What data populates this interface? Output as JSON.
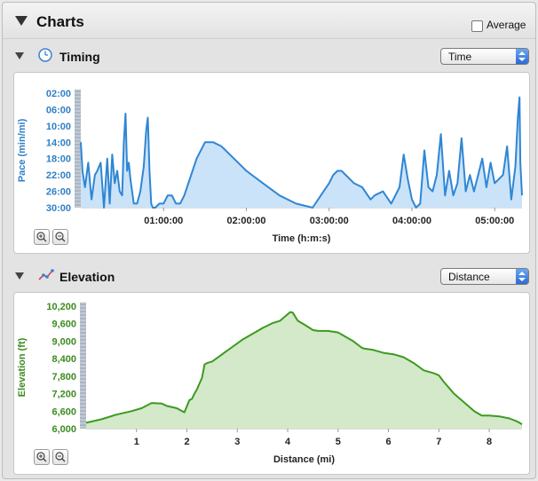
{
  "header": {
    "title": "Charts",
    "average_label": "Average"
  },
  "timing": {
    "title": "Timing",
    "select_value": "Time",
    "chart_data": {
      "type": "area",
      "ylabel": "Pace (min/mi)",
      "xlabel": "Time (h:m:s)",
      "y_ticks": [
        "02:00",
        "06:00",
        "10:00",
        "14:00",
        "18:00",
        "22:00",
        "26:00",
        "30:00"
      ],
      "x_ticks": [
        "01:00:00",
        "02:00:00",
        "03:00:00",
        "04:00:00",
        "05:00:00"
      ],
      "ylim": [
        2,
        30
      ],
      "y_reversed": true,
      "xlim": [
        0,
        5.33
      ],
      "x_unit": "hours",
      "color": "#2f86d4",
      "fill": "#cbe3f8",
      "x": [
        0,
        0.02,
        0.05,
        0.09,
        0.13,
        0.17,
        0.2,
        0.24,
        0.28,
        0.32,
        0.35,
        0.38,
        0.41,
        0.44,
        0.47,
        0.5,
        0.52,
        0.54,
        0.56,
        0.58,
        0.6,
        0.64,
        0.68,
        0.72,
        0.76,
        0.79,
        0.81,
        0.83,
        0.85,
        0.87,
        0.9,
        0.95,
        1.0,
        1.05,
        1.1,
        1.15,
        1.2,
        1.25,
        1.3,
        1.4,
        1.5,
        1.6,
        1.7,
        1.8,
        1.9,
        2.0,
        2.2,
        2.4,
        2.6,
        2.8,
        2.9,
        3.0,
        3.05,
        3.1,
        3.15,
        3.3,
        3.4,
        3.5,
        3.55,
        3.65,
        3.75,
        3.85,
        3.9,
        3.95,
        4.0,
        4.05,
        4.1,
        4.15,
        4.2,
        4.25,
        4.3,
        4.35,
        4.4,
        4.45,
        4.5,
        4.55,
        4.6,
        4.65,
        4.7,
        4.75,
        4.8,
        4.85,
        4.9,
        4.95,
        5.0,
        5.05,
        5.1,
        5.15,
        5.2,
        5.25,
        5.28,
        5.3,
        5.31,
        5.33
      ],
      "values": [
        14,
        21,
        25,
        19,
        28,
        22,
        21,
        19,
        30,
        18,
        29,
        17,
        24,
        21,
        26,
        27,
        14,
        7,
        21,
        19,
        23,
        29,
        29,
        26,
        20,
        11,
        8,
        21,
        29,
        30,
        30,
        29,
        29,
        27,
        27,
        29,
        29,
        27,
        24,
        18,
        14,
        14,
        15,
        17,
        19,
        21,
        24,
        27,
        29,
        30,
        27,
        24,
        22,
        21,
        21,
        24,
        25,
        28,
        27,
        26,
        29,
        25,
        17,
        23,
        28,
        30,
        29,
        16,
        25,
        26,
        22,
        12,
        27,
        21,
        27,
        24,
        13,
        26,
        22,
        26,
        22,
        18,
        25,
        19,
        24,
        23,
        22,
        15,
        28,
        20,
        8,
        3,
        19,
        27
      ]
    }
  },
  "elevation": {
    "title": "Elevation",
    "select_value": "Distance",
    "chart_data": {
      "type": "area",
      "ylabel": "Elevation (ft)",
      "xlabel": "Distance (mi)",
      "y_ticks": [
        "10,200",
        "9,600",
        "9,000",
        "8,400",
        "7,800",
        "7,200",
        "6,600",
        "6,000"
      ],
      "x_ticks": [
        "1",
        "2",
        "3",
        "4",
        "5",
        "6",
        "7",
        "8"
      ],
      "ylim": [
        6000,
        10200
      ],
      "xlim": [
        0,
        8.65
      ],
      "color": "#3c9a1f",
      "fill": "#d3e9c9",
      "x": [
        0,
        0.3,
        0.6,
        0.9,
        1.1,
        1.3,
        1.5,
        1.6,
        1.8,
        1.95,
        2.05,
        2.1,
        2.15,
        2.2,
        2.3,
        2.35,
        2.4,
        2.5,
        2.7,
        2.9,
        3.1,
        3.3,
        3.5,
        3.7,
        3.85,
        3.95,
        4.05,
        4.1,
        4.2,
        4.35,
        4.5,
        4.6,
        4.8,
        5.0,
        5.1,
        5.3,
        5.45,
        5.5,
        5.7,
        5.9,
        6.1,
        6.3,
        6.5,
        6.7,
        6.9,
        7.0,
        7.1,
        7.3,
        7.5,
        7.7,
        7.85,
        8.0,
        8.2,
        8.4,
        8.55,
        8.65
      ],
      "values": [
        6200,
        6320,
        6480,
        6600,
        6700,
        6880,
        6860,
        6780,
        6700,
        6560,
        6980,
        7020,
        7200,
        7350,
        7750,
        8200,
        8250,
        8300,
        8550,
        8800,
        9050,
        9250,
        9450,
        9620,
        9700,
        9850,
        10000,
        9980,
        9700,
        9550,
        9380,
        9350,
        9350,
        9300,
        9200,
        9000,
        8800,
        8750,
        8700,
        8600,
        8550,
        8450,
        8250,
        8000,
        7900,
        7830,
        7600,
        7200,
        6900,
        6600,
        6450,
        6450,
        6420,
        6350,
        6250,
        6150
      ]
    }
  }
}
